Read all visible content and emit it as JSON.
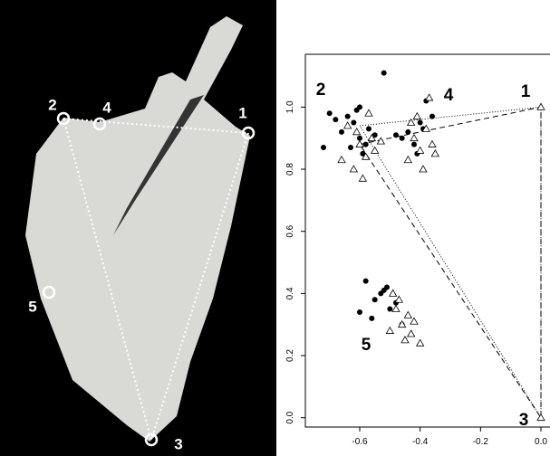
{
  "photo": {
    "landmarks": [
      "1",
      "2",
      "3",
      "4",
      "5"
    ]
  },
  "chart_data": {
    "type": "scatter",
    "xlim": [
      -0.78,
      0.03
    ],
    "ylim": [
      -0.03,
      1.17
    ],
    "xticks": [
      {
        "value": -0.6,
        "label": "-0.6"
      },
      {
        "value": -0.4,
        "label": "-0.4"
      },
      {
        "value": -0.2,
        "label": "-0.2"
      },
      {
        "value": 0,
        "label": "0.0"
      }
    ],
    "yticks": [
      {
        "value": 0,
        "label": "0.0"
      },
      {
        "value": 0.2,
        "label": "0.2"
      },
      {
        "value": 0.4,
        "label": "0.4"
      },
      {
        "value": 0.6,
        "label": "0.6"
      },
      {
        "value": 0.8,
        "label": "0.8"
      },
      {
        "value": 1,
        "label": "1.0"
      }
    ],
    "annotations": [
      "1",
      "2",
      "3",
      "4",
      "5"
    ],
    "series": [
      {
        "mode": "line",
        "dash": "6,4",
        "color": "#000000",
        "x": [
          -0.6,
          0,
          0,
          -0.6
        ],
        "y": [
          0.88,
          1,
          0,
          0.88
        ]
      },
      {
        "mode": "line",
        "dash": "1,2",
        "color": "#000000",
        "x": [
          -0.6,
          0,
          0,
          -0.6
        ],
        "y": [
          0.94,
          1,
          0,
          0.94
        ]
      },
      {
        "mode": "points",
        "marker": "circle",
        "color": "#000000",
        "x": [
          -0.62,
          -0.6,
          -0.58,
          -0.64,
          -0.66,
          -0.59,
          -0.61,
          -0.57,
          -0.63,
          -0.68,
          -0.55,
          -0.6,
          -0.72,
          -0.7,
          -0.44,
          -0.4,
          -0.38,
          -0.42,
          -0.46,
          -0.36,
          -0.41,
          -0.39,
          -0.48,
          -0.58,
          -0.55,
          -0.52,
          -0.5,
          -0.56,
          -0.53,
          -0.48,
          -0.6,
          -0.46,
          -0.51,
          -0.52
        ],
        "y": [
          0.95,
          0.9,
          0.88,
          0.97,
          0.92,
          0.85,
          0.99,
          0.93,
          0.87,
          0.96,
          0.91,
          1.0,
          0.87,
          0.98,
          0.92,
          0.95,
          1.02,
          0.88,
          0.9,
          0.97,
          0.85,
          0.93,
          0.91,
          0.44,
          0.38,
          0.41,
          0.35,
          0.32,
          0.4,
          0.37,
          0.34,
          0.3,
          0.42,
          1.11
        ]
      },
      {
        "mode": "points",
        "marker": "triangle",
        "color": "#000000",
        "x": [
          -0.6,
          -0.58,
          -0.56,
          -0.62,
          -0.64,
          -0.59,
          -0.55,
          -0.57,
          -0.61,
          -0.66,
          -0.53,
          -0.42,
          -0.4,
          -0.38,
          -0.44,
          -0.36,
          -0.41,
          -0.39,
          -0.43,
          -0.35,
          -0.37,
          -0.48,
          -0.46,
          -0.44,
          -0.5,
          -0.42,
          -0.47,
          -0.45,
          -0.49,
          -0.43,
          -0.4,
          0,
          0
        ],
        "y": [
          0.88,
          0.84,
          0.9,
          0.8,
          0.94,
          0.77,
          0.86,
          0.98,
          0.92,
          0.83,
          0.89,
          0.9,
          0.86,
          0.93,
          0.83,
          0.88,
          0.97,
          0.8,
          0.95,
          0.85,
          1.03,
          0.35,
          0.3,
          0.33,
          0.28,
          0.31,
          0.38,
          0.25,
          0.4,
          0.27,
          0.24,
          1,
          0
        ]
      }
    ]
  }
}
